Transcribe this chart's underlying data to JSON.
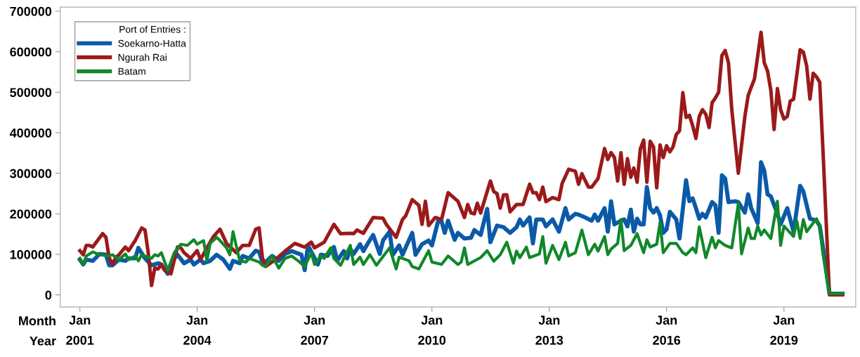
{
  "chart_data": {
    "type": "line",
    "xlabel": "Month\nYear",
    "legend_title": "Port of Entries :",
    "legend": "top left",
    "grid": false,
    "marker": "none",
    "line_style": "solid",
    "xlim": [
      "2000-07",
      "2020-11"
    ],
    "ylim": [
      -30000,
      710000
    ],
    "xticks": [
      {
        "value": "2001-01",
        "label": "Jan\n2001"
      },
      {
        "value": "2004-01",
        "label": "Jan\n2004"
      },
      {
        "value": "2007-01",
        "label": "Jan\n2007"
      },
      {
        "value": "2010-01",
        "label": "Jan\n2010"
      },
      {
        "value": "2013-01",
        "label": "Jan\n2013"
      },
      {
        "value": "2016-01",
        "label": "Jan\n2016"
      },
      {
        "value": "2019-01",
        "label": "Jan\n2019"
      }
    ],
    "yticks": [
      0,
      100000,
      200000,
      300000,
      400000,
      500000,
      600000,
      700000
    ],
    "series": [
      {
        "name": "Soekarno-Hatta",
        "color": "#0b5aa8",
        "x": [
          "2001-01",
          "2001-02",
          "2001-03",
          "2001-05",
          "2001-06",
          "2001-07",
          "2001-09",
          "2001-10",
          "2001-11",
          "2002-01",
          "2002-03",
          "2002-04",
          "2002-06",
          "2002-07",
          "2002-09",
          "2002-11",
          "2003-01",
          "2003-02",
          "2003-04",
          "2003-06",
          "2003-07",
          "2003-09",
          "2003-11",
          "2003-12",
          "2004-02",
          "2004-03",
          "2004-05",
          "2004-07",
          "2004-09",
          "2004-11",
          "2004-12",
          "2005-02",
          "2005-03",
          "2005-05",
          "2005-07",
          "2005-08",
          "2005-09",
          "2005-10",
          "2005-12",
          "2006-02",
          "2006-04",
          "2006-06",
          "2006-09",
          "2006-10",
          "2006-11",
          "2007-02",
          "2007-03",
          "2007-05",
          "2007-07",
          "2007-08",
          "2007-10",
          "2007-11",
          "2007-12",
          "2008-01",
          "2008-03",
          "2008-04",
          "2008-05",
          "2008-07",
          "2008-09",
          "2008-10",
          "2008-12",
          "2009-01",
          "2009-03",
          "2009-04",
          "2009-07",
          "2009-08",
          "2009-10",
          "2009-12",
          "2010-01",
          "2010-03",
          "2010-04",
          "2010-05",
          "2010-06",
          "2010-08",
          "2010-09",
          "2010-11",
          "2011-01",
          "2011-02",
          "2011-04",
          "2011-06",
          "2011-07",
          "2011-09",
          "2011-11",
          "2012-01",
          "2012-03",
          "2012-04",
          "2012-05",
          "2012-07",
          "2012-08",
          "2012-09",
          "2012-11",
          "2012-12",
          "2013-02",
          "2013-04",
          "2013-06",
          "2013-07",
          "2013-09",
          "2013-10",
          "2013-12",
          "2014-02",
          "2014-03",
          "2014-04",
          "2014-06",
          "2014-07",
          "2014-08",
          "2014-09",
          "2014-11",
          "2014-12",
          "2015-01",
          "2015-02",
          "2015-03",
          "2015-04",
          "2015-05",
          "2015-06",
          "2015-07",
          "2015-08",
          "2015-09",
          "2015-10",
          "2015-11",
          "2015-12",
          "2016-01",
          "2016-02",
          "2016-03",
          "2016-04",
          "2016-05",
          "2016-07",
          "2016-08",
          "2016-09",
          "2016-10",
          "2016-11",
          "2016-12",
          "2017-01",
          "2017-03",
          "2017-04",
          "2017-05",
          "2017-06",
          "2017-07",
          "2017-08",
          "2017-10",
          "2017-11",
          "2018-01",
          "2018-02",
          "2018-03",
          "2018-05",
          "2018-06",
          "2018-07",
          "2018-08",
          "2018-09",
          "2018-11",
          "2018-12",
          "2019-02",
          "2019-04",
          "2019-06",
          "2019-07",
          "2019-09",
          "2019-11",
          "2019-12",
          "2020-01",
          "2020-03",
          "2020-07"
        ],
        "values": [
          87000,
          75000,
          87000,
          84000,
          92000,
          101000,
          99000,
          73000,
          73000,
          87000,
          84000,
          90000,
          90000,
          116000,
          90000,
          73000,
          78000,
          75000,
          52000,
          90000,
          99000,
          78000,
          87000,
          75000,
          87000,
          78000,
          84000,
          99000,
          87000,
          64000,
          84000,
          78000,
          96000,
          90000,
          109000,
          106000,
          81000,
          81000,
          96000,
          84000,
          101000,
          108000,
          99000,
          61000,
          122000,
          75000,
          99000,
          96000,
          118000,
          84000,
          108000,
          90000,
          113000,
          101000,
          125000,
          108000,
          122000,
          148000,
          101000,
          134000,
          156000,
          99000,
          122000,
          99000,
          153000,
          99000,
          125000,
          134000,
          122000,
          183000,
          181000,
          153000,
          183000,
          136000,
          153000,
          139000,
          141000,
          160000,
          148000,
          212000,
          130000,
          171000,
          167000,
          153000,
          167000,
          186000,
          171000,
          191000,
          127000,
          186000,
          186000,
          169000,
          186000,
          156000,
          214000,
          186000,
          200000,
          198000,
          191000,
          183000,
          198000,
          183000,
          214000,
          156000,
          231000,
          174000,
          183000,
          186000,
          169000,
          210000,
          156000,
          188000,
          174000,
          174000,
          266000,
          214000,
          203000,
          214000,
          196000,
          153000,
          162000,
          205000,
          196000,
          186000,
          139000,
          283000,
          231000,
          238000,
          214000,
          188000,
          200000,
          191000,
          229000,
          221000,
          153000,
          295000,
          287000,
          229000,
          231000,
          229000,
          203000,
          248000,
          214000,
          177000,
          327000,
          307000,
          248000,
          243000,
          200000,
          174000,
          214000,
          156000,
          269000,
          255000,
          188000,
          183000,
          170000,
          116000,
          3000,
          3000
        ]
      },
      {
        "name": "Ngurah Rai",
        "color": "#9b1a1a",
        "x": [
          "2001-01",
          "2001-02",
          "2001-03",
          "2001-04",
          "2001-05",
          "2001-08",
          "2001-09",
          "2001-10",
          "2001-11",
          "2001-12",
          "2002-01",
          "2002-03",
          "2002-04",
          "2002-06",
          "2002-08",
          "2002-09",
          "2002-10",
          "2002-11",
          "2002-12",
          "2003-01",
          "2003-02",
          "2003-03",
          "2003-05",
          "2003-07",
          "2003-08",
          "2003-09",
          "2003-11",
          "2004-01",
          "2004-02",
          "2004-04",
          "2004-06",
          "2004-08",
          "2004-10",
          "2005-01",
          "2005-03",
          "2005-05",
          "2005-07",
          "2005-08",
          "2005-09",
          "2005-10",
          "2006-01",
          "2006-04",
          "2006-07",
          "2006-10",
          "2006-12",
          "2007-01",
          "2007-04",
          "2007-07",
          "2007-09",
          "2007-12",
          "2008-01",
          "2008-02",
          "2008-04",
          "2008-07",
          "2008-10",
          "2008-11",
          "2009-02",
          "2009-04",
          "2009-05",
          "2009-07",
          "2009-09",
          "2009-10",
          "2009-11",
          "2009-12",
          "2010-02",
          "2010-04",
          "2010-06",
          "2010-09",
          "2010-11",
          "2010-12",
          "2011-01",
          "2011-02",
          "2011-03",
          "2011-04",
          "2011-07",
          "2011-08",
          "2011-09",
          "2011-10",
          "2011-11",
          "2011-12",
          "2012-01",
          "2012-03",
          "2012-05",
          "2012-07",
          "2012-08",
          "2012-09",
          "2012-10",
          "2012-11",
          "2012-12",
          "2013-02",
          "2013-04",
          "2013-05",
          "2013-07",
          "2013-09",
          "2013-10",
          "2013-11",
          "2014-01",
          "2014-02",
          "2014-04",
          "2014-06",
          "2014-07",
          "2014-08",
          "2014-09",
          "2014-10",
          "2014-11",
          "2014-12",
          "2015-01",
          "2015-02",
          "2015-03",
          "2015-04",
          "2015-05",
          "2015-06",
          "2015-07",
          "2015-08",
          "2015-09",
          "2015-10",
          "2015-11",
          "2015-12",
          "2016-01",
          "2016-02",
          "2016-03",
          "2016-04",
          "2016-05",
          "2016-06",
          "2016-07",
          "2016-08",
          "2016-09",
          "2016-10",
          "2016-11",
          "2016-12",
          "2017-01",
          "2017-02",
          "2017-03",
          "2017-04",
          "2017-05",
          "2017-06",
          "2017-07",
          "2017-08",
          "2017-09",
          "2017-11",
          "2018-01",
          "2018-02",
          "2018-03",
          "2018-04",
          "2018-06",
          "2018-07",
          "2018-08",
          "2018-09",
          "2018-10",
          "2018-11",
          "2018-12",
          "2019-01",
          "2019-02",
          "2019-03",
          "2019-04",
          "2019-06",
          "2019-07",
          "2019-08",
          "2019-09",
          "2019-10",
          "2019-11",
          "2019-12",
          "2020-01",
          "2020-03",
          "2020-07"
        ],
        "values": [
          109000,
          99000,
          122000,
          122000,
          118000,
          151000,
          142000,
          92000,
          75000,
          92000,
          99000,
          118000,
          109000,
          134000,
          165000,
          160000,
          104000,
          23000,
          66000,
          64000,
          75000,
          61000,
          52000,
          118000,
          116000,
          104000,
          90000,
          109000,
          87000,
          116000,
          144000,
          162000,
          127000,
          104000,
          122000,
          122000,
          162000,
          165000,
          92000,
          70000,
          87000,
          108000,
          127000,
          118000,
          130000,
          116000,
          130000,
          174000,
          151000,
          152000,
          151000,
          160000,
          152000,
          191000,
          189000,
          174000,
          142000,
          186000,
          195000,
          235000,
          221000,
          174000,
          231000,
          171000,
          191000,
          186000,
          252000,
          231000,
          191000,
          223000,
          202000,
          200000,
          226000,
          202000,
          281000,
          255000,
          250000,
          214000,
          247000,
          247000,
          205000,
          223000,
          223000,
          273000,
          252000,
          252000,
          235000,
          266000,
          230000,
          240000,
          235000,
          275000,
          310000,
          305000,
          273000,
          299000,
          266000,
          266000,
          287000,
          361000,
          334000,
          351000,
          339000,
          281000,
          351000,
          273000,
          336000,
          290000,
          313000,
          278000,
          360000,
          382000,
          278000,
          379000,
          365000,
          264000,
          370000,
          339000,
          368000,
          353000,
          365000,
          396000,
          405000,
          499000,
          438000,
          443000,
          417000,
          386000,
          440000,
          457000,
          446000,
          413000,
          474000,
          486000,
          500000,
          591000,
          603000,
          573000,
          457000,
          300000,
          440000,
          492000,
          512000,
          533000,
          648000,
          573000,
          552000,
          504000,
          408000,
          509000,
          457000,
          434000,
          440000,
          478000,
          483000,
          605000,
          599000,
          565000,
          483000,
          547000,
          538000,
          525000,
          353000,
          0,
          0
        ]
      },
      {
        "name": "Batam",
        "color": "#10882a",
        "x": [
          "2001-01",
          "2001-02",
          "2001-03",
          "2001-05",
          "2001-07",
          "2001-10",
          "2001-11",
          "2002-01",
          "2002-03",
          "2002-04",
          "2002-06",
          "2002-07",
          "2002-08",
          "2002-11",
          "2002-12",
          "2003-01",
          "2003-02",
          "2003-04",
          "2003-06",
          "2003-08",
          "2003-10",
          "2003-12",
          "2004-01",
          "2004-03",
          "2004-04",
          "2004-05",
          "2004-07",
          "2004-08",
          "2004-10",
          "2004-11",
          "2004-12",
          "2005-02",
          "2005-04",
          "2005-05",
          "2005-08",
          "2005-09",
          "2005-10",
          "2005-12",
          "2006-02",
          "2006-04",
          "2006-06",
          "2006-08",
          "2006-10",
          "2006-12",
          "2007-01",
          "2007-03",
          "2007-04",
          "2007-06",
          "2007-07",
          "2007-09",
          "2007-12",
          "2008-01",
          "2008-03",
          "2008-04",
          "2008-06",
          "2008-08",
          "2008-12",
          "2009-02",
          "2009-03",
          "2009-06",
          "2009-07",
          "2009-09",
          "2009-12",
          "2010-01",
          "2010-04",
          "2010-06",
          "2010-09",
          "2010-10",
          "2010-11",
          "2010-12",
          "2011-04",
          "2011-06",
          "2011-08",
          "2011-10",
          "2011-12",
          "2012-02",
          "2012-03",
          "2012-04",
          "2012-06",
          "2012-07",
          "2012-10",
          "2012-11",
          "2012-12",
          "2013-02",
          "2013-04",
          "2013-06",
          "2013-07",
          "2013-09",
          "2013-11",
          "2014-01",
          "2014-03",
          "2014-04",
          "2014-06",
          "2014-07",
          "2014-08",
          "2014-10",
          "2014-11",
          "2014-12",
          "2015-02",
          "2015-04",
          "2015-06",
          "2015-07",
          "2015-08",
          "2015-10",
          "2015-11",
          "2015-12",
          "2016-02",
          "2016-04",
          "2016-06",
          "2016-07",
          "2016-09",
          "2016-10",
          "2016-11",
          "2017-01",
          "2017-03",
          "2017-04",
          "2017-05",
          "2017-07",
          "2017-09",
          "2017-11",
          "2017-12",
          "2018-02",
          "2018-03",
          "2018-04",
          "2018-05",
          "2018-06",
          "2018-07",
          "2018-09",
          "2018-11",
          "2018-12",
          "2019-01",
          "2019-04",
          "2019-05",
          "2019-06",
          "2019-07",
          "2019-08",
          "2019-11",
          "2019-12",
          "2020-01",
          "2020-03",
          "2020-07"
        ],
        "values": [
          90000,
          75000,
          96000,
          106000,
          99000,
          96000,
          99000,
          87000,
          101000,
          87000,
          96000,
          84000,
          99000,
          90000,
          99000,
          96000,
          104000,
          61000,
          104000,
          125000,
          122000,
          136000,
          125000,
          134000,
          84000,
          127000,
          142000,
          134000,
          116000,
          99000,
          156000,
          84000,
          81000,
          90000,
          81000,
          73000,
          70000,
          96000,
          66000,
          90000,
          96000,
          84000,
          70000,
          104000,
          75000,
          96000,
          90000,
          116000,
          90000,
          73000,
          122000,
          75000,
          93000,
          75000,
          99000,
          73000,
          116000,
          64000,
          93000,
          84000,
          70000,
          64000,
          109000,
          81000,
          75000,
          96000,
          75000,
          81000,
          116000,
          75000,
          92000,
          109000,
          83000,
          99000,
          130000,
          78000,
          108000,
          92000,
          118000,
          92000,
          101000,
          144000,
          78000,
          122000,
          87000,
          130000,
          96000,
          104000,
          160000,
          99000,
          125000,
          108000,
          144000,
          99000,
          113000,
          127000,
          186000,
          109000,
          122000,
          151000,
          104000,
          136000,
          118000,
          125000,
          179000,
          104000,
          127000,
          127000,
          104000,
          99000,
          116000,
          104000,
          168000,
          92000,
          142000,
          116000,
          134000,
          122000,
          116000,
          226000,
          101000,
          165000,
          139000,
          139000,
          170000,
          148000,
          160000,
          139000,
          231000,
          122000,
          170000,
          144000,
          183000,
          139000,
          186000,
          156000,
          188000,
          168000,
          99000,
          3000,
          3000
        ]
      }
    ]
  }
}
